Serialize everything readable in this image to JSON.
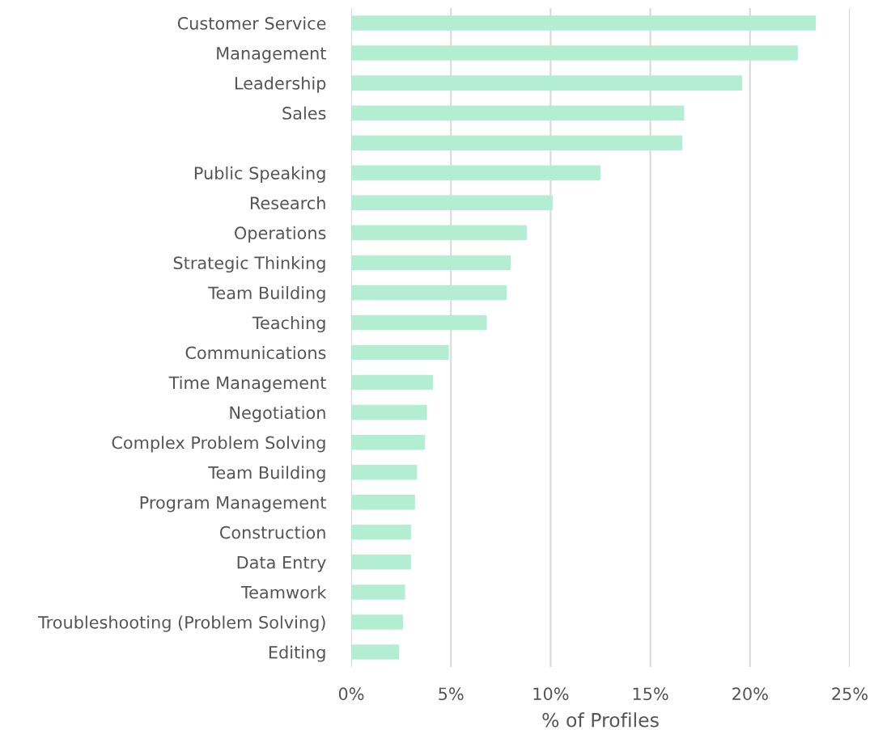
{
  "chart_data": {
    "type": "bar",
    "orientation": "horizontal",
    "xlabel": "% of Profiles",
    "categories": [
      "Customer Service",
      "Management",
      "Leadership",
      "Sales",
      null,
      "Public Speaking",
      "Research",
      "Operations",
      "Strategic Thinking",
      "Team Building",
      "Teaching",
      "Communications",
      "Time Management",
      "Negotiation",
      "Complex Problem Solving",
      "Team Building",
      "Program Management",
      "Construction",
      "Data Entry",
      "Teamwork",
      "Troubleshooting (Problem Solving)",
      "Editing"
    ],
    "values": [
      23.3,
      22.4,
      19.6,
      16.7,
      16.6,
      12.5,
      10.1,
      8.8,
      8.0,
      7.8,
      6.8,
      4.9,
      4.1,
      3.8,
      3.7,
      3.3,
      3.2,
      3.0,
      3.0,
      2.7,
      2.6,
      2.4
    ],
    "color": "#b3eed3",
    "xlim": [
      0,
      25
    ],
    "xticks": [
      {
        "value": 0,
        "label": "0%"
      },
      {
        "value": 5,
        "label": "5%"
      },
      {
        "value": 10,
        "label": "10%"
      },
      {
        "value": 15,
        "label": "15%"
      },
      {
        "value": 20,
        "label": "20%"
      },
      {
        "value": 25,
        "label": "25%"
      }
    ],
    "grid": "x",
    "legend": false
  }
}
